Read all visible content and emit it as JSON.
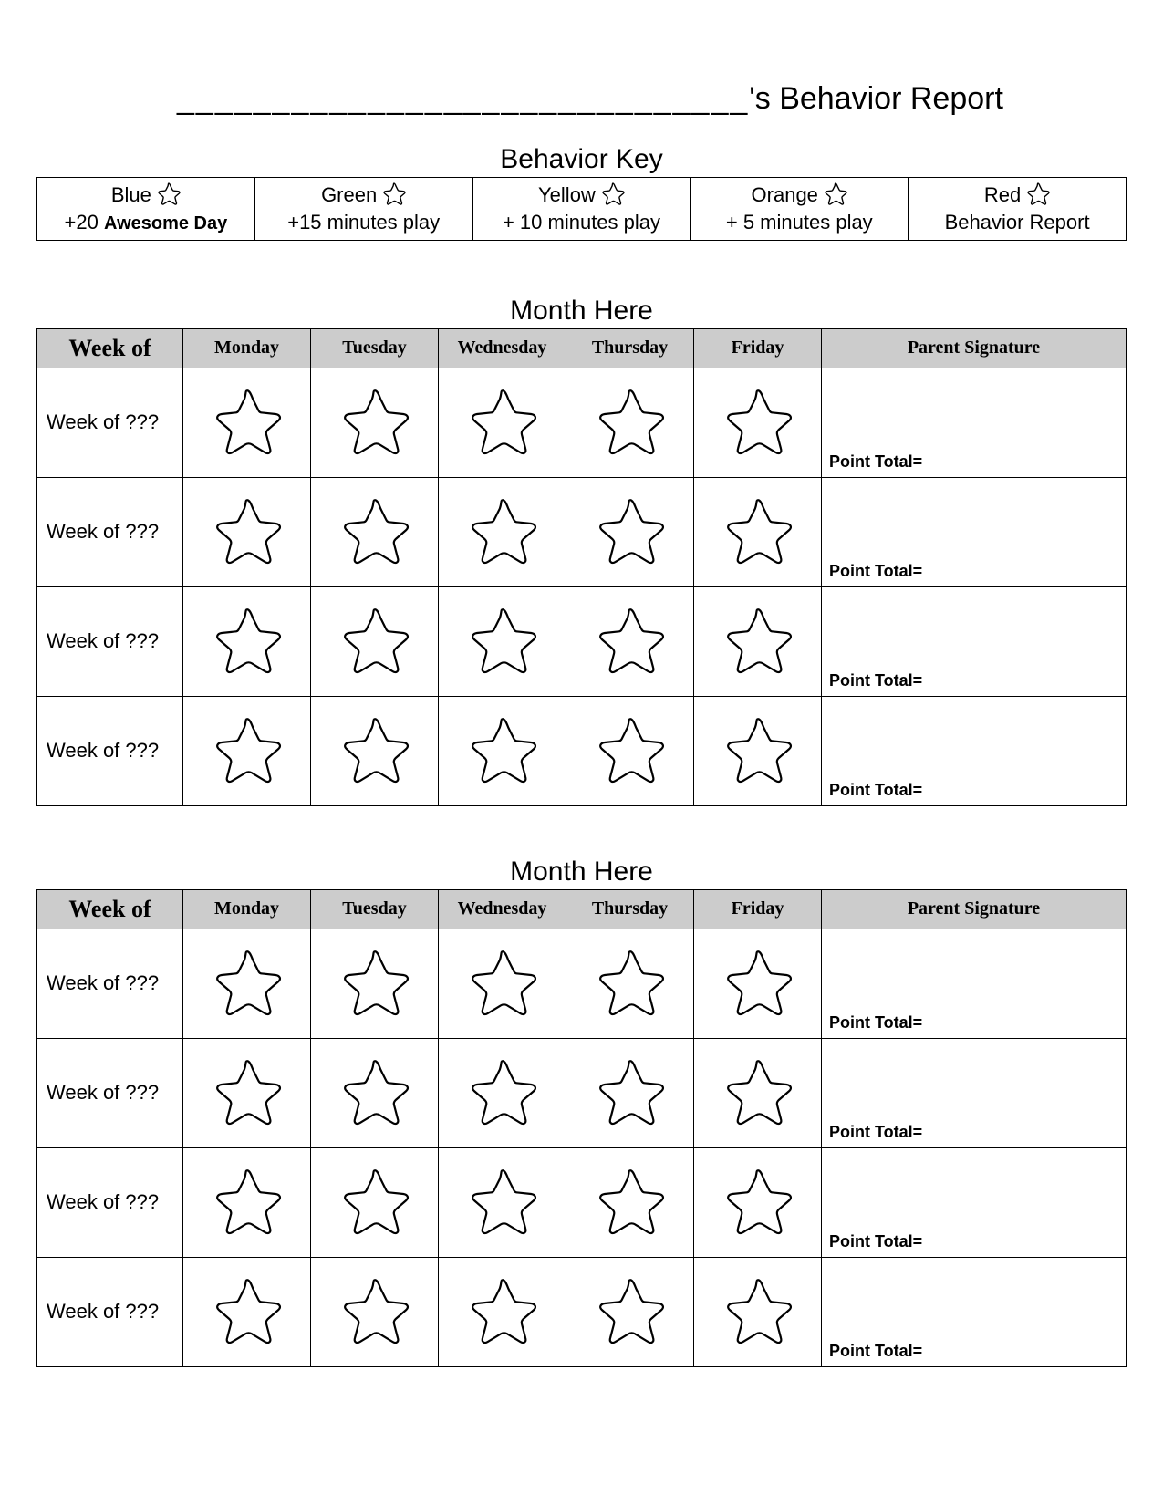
{
  "colors": {
    "page_bg": "#ffffff",
    "text": "#000000",
    "border": "#000000",
    "header_bg": "#cccccc",
    "star_stroke": "#000000",
    "star_fill": "#ffffff"
  },
  "title": {
    "blank_line": "______________________________",
    "suffix": "'s Behavior Report"
  },
  "key": {
    "heading": "Behavior Key",
    "items": [
      {
        "color": "Blue",
        "reward_prefix": "+20 ",
        "reward_bold": "Awesome Day",
        "reward_suffix": ""
      },
      {
        "color": "Green",
        "reward_prefix": "",
        "reward_bold": "",
        "reward_suffix": "+15 minutes play"
      },
      {
        "color": "Yellow",
        "reward_prefix": "",
        "reward_bold": "",
        "reward_suffix": "+ 10 minutes play"
      },
      {
        "color": "Orange",
        "reward_prefix": "",
        "reward_bold": "",
        "reward_suffix": "+ 5 minutes play"
      },
      {
        "color": "Red",
        "reward_prefix": "",
        "reward_bold": "",
        "reward_suffix": "Behavior Report"
      }
    ]
  },
  "table_headers": {
    "week_of": "Week of",
    "days": [
      "Monday",
      "Tuesday",
      "Wednesday",
      "Thursday",
      "Friday"
    ],
    "signature": "Parent Signature"
  },
  "point_total_label": "Point Total=",
  "months": [
    {
      "heading": "Month Here",
      "weeks": [
        "Week of ???",
        "Week of ???",
        "Week of ???",
        "Week of ???"
      ]
    },
    {
      "heading": "Month Here",
      "weeks": [
        "Week of ???",
        "Week of ???",
        "Week of ???",
        "Week of ???"
      ]
    }
  ],
  "star": {
    "small_size": 26,
    "large_size": 78,
    "stroke_width_small": 1.4,
    "stroke_width_large": 2.2
  }
}
